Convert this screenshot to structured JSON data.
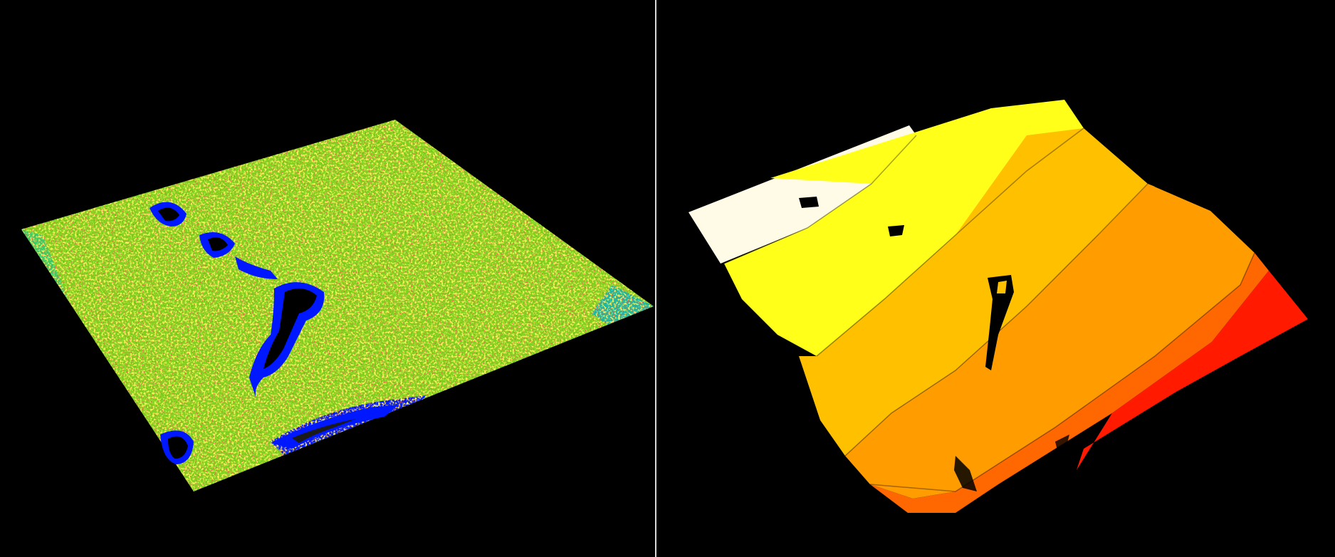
{
  "viewports": [
    {
      "name": "classification-view",
      "colors": {
        "background": "#000000",
        "ground": "#7ed321",
        "vegetation": "#c8e614",
        "high": "#e02020",
        "low": "#00c8a0",
        "water": "#0018ff",
        "void": "#000000"
      }
    },
    {
      "name": "elevation-view",
      "colors": {
        "background": "#000000",
        "lowest": "#fffbe6",
        "low": "#ffff1a",
        "mid": "#ffc000",
        "midhigh": "#ff9c00",
        "high": "#ff6800",
        "highest": "#ff1a00",
        "void": "#000000"
      }
    }
  ],
  "divider_color": "#d8d8d8"
}
